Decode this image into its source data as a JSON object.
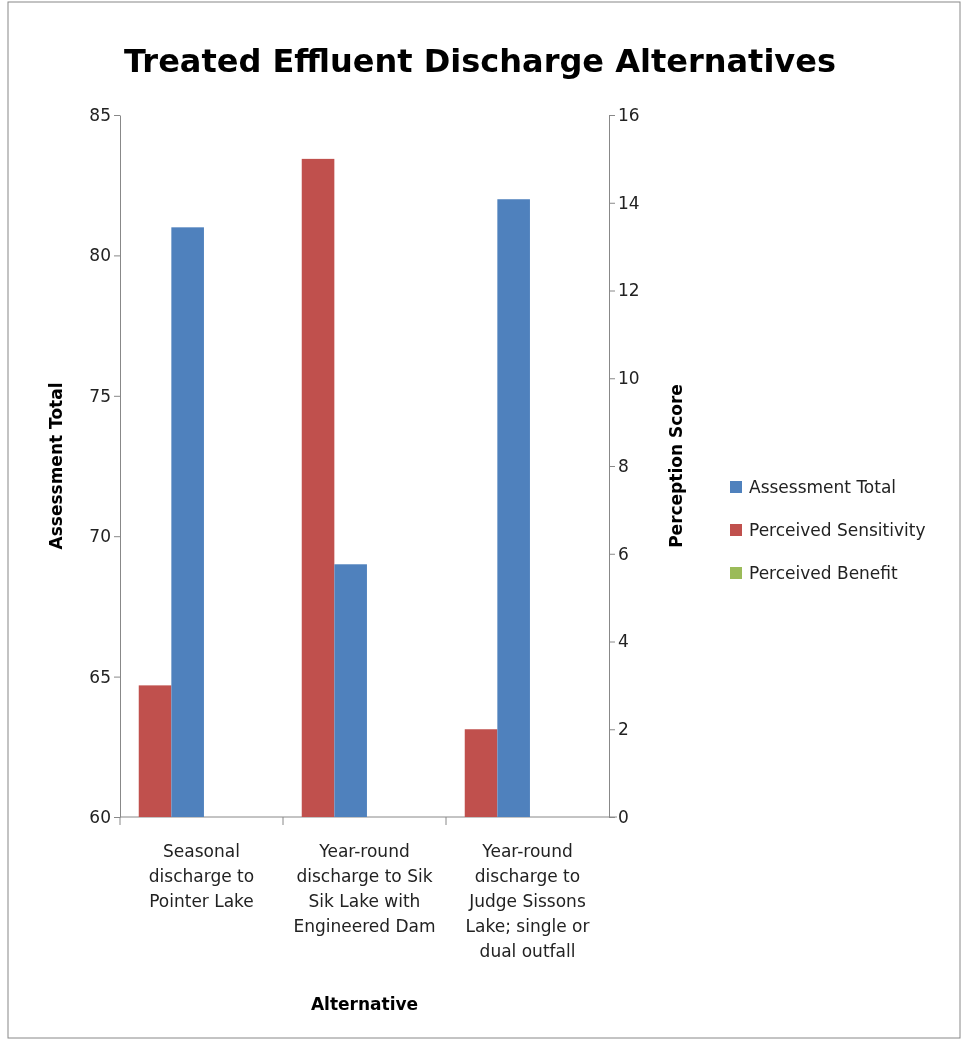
{
  "chart_data": {
    "type": "bar",
    "title": "Treated Effluent Discharge Alternatives",
    "xlabel": "Alternative",
    "ylabel": "Assessment Total",
    "y2label": "Perception Score",
    "categories": [
      "Seasonal discharge to Pointer Lake",
      "Year-round discharge to Sik Sik Lake with Engineered Dam",
      "Year-round discharge to Judge Sissons Lake; single or dual outfall"
    ],
    "series": [
      {
        "name": "Perceived Sensitivity",
        "color": "#c0504d",
        "values": [
          3,
          15,
          2
        ],
        "axis": "y2"
      },
      {
        "name": "Assessment Total",
        "color": "#4f81bd",
        "values": [
          81,
          69,
          82
        ]
      },
      {
        "name": "Perceived Benefit",
        "color": "#9bbb59",
        "values": [
          0,
          0,
          0
        ],
        "axis": "y2"
      }
    ],
    "ylim": [
      60,
      85
    ],
    "yticks": [
      60,
      65,
      70,
      75,
      80,
      85
    ],
    "y2lim": [
      0,
      16
    ],
    "y2ticks": [
      0,
      2,
      4,
      6,
      8,
      10,
      12,
      14,
      16
    ],
    "legend": "right",
    "grid": false
  }
}
